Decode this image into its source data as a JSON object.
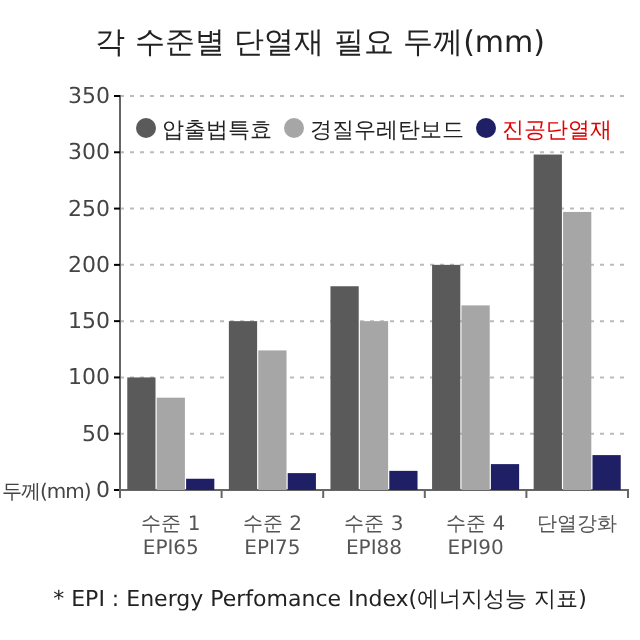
{
  "chart_data": {
    "type": "bar",
    "title": "각 수준별 단열재 필요 두께(mm)",
    "ylabel": "두께(mm)",
    "categories": [
      "수준 1\nEPI65",
      "수준 2\nEPI75",
      "수준 3\nEPI88",
      "수준 4\nEPI90",
      "단열강화"
    ],
    "series": [
      {
        "name": "압출법특효",
        "color": "#5a5a5a",
        "values": [
          100,
          150,
          181,
          200,
          298
        ]
      },
      {
        "name": "경질우레탄보드",
        "color": "#a6a6a6",
        "values": [
          82,
          124,
          150,
          164,
          247
        ]
      },
      {
        "name": "진공단열재",
        "color": "#1f1f66",
        "values": [
          10,
          15,
          17,
          23,
          31
        ]
      }
    ],
    "ylim": [
      0,
      350
    ],
    "yticks": [
      0,
      50,
      100,
      150,
      200,
      250,
      300,
      350
    ],
    "grid": "y",
    "legend": "top",
    "annotations": [
      "* EPI : Energy Perfomance Index(에너지성능 지표)"
    ]
  }
}
